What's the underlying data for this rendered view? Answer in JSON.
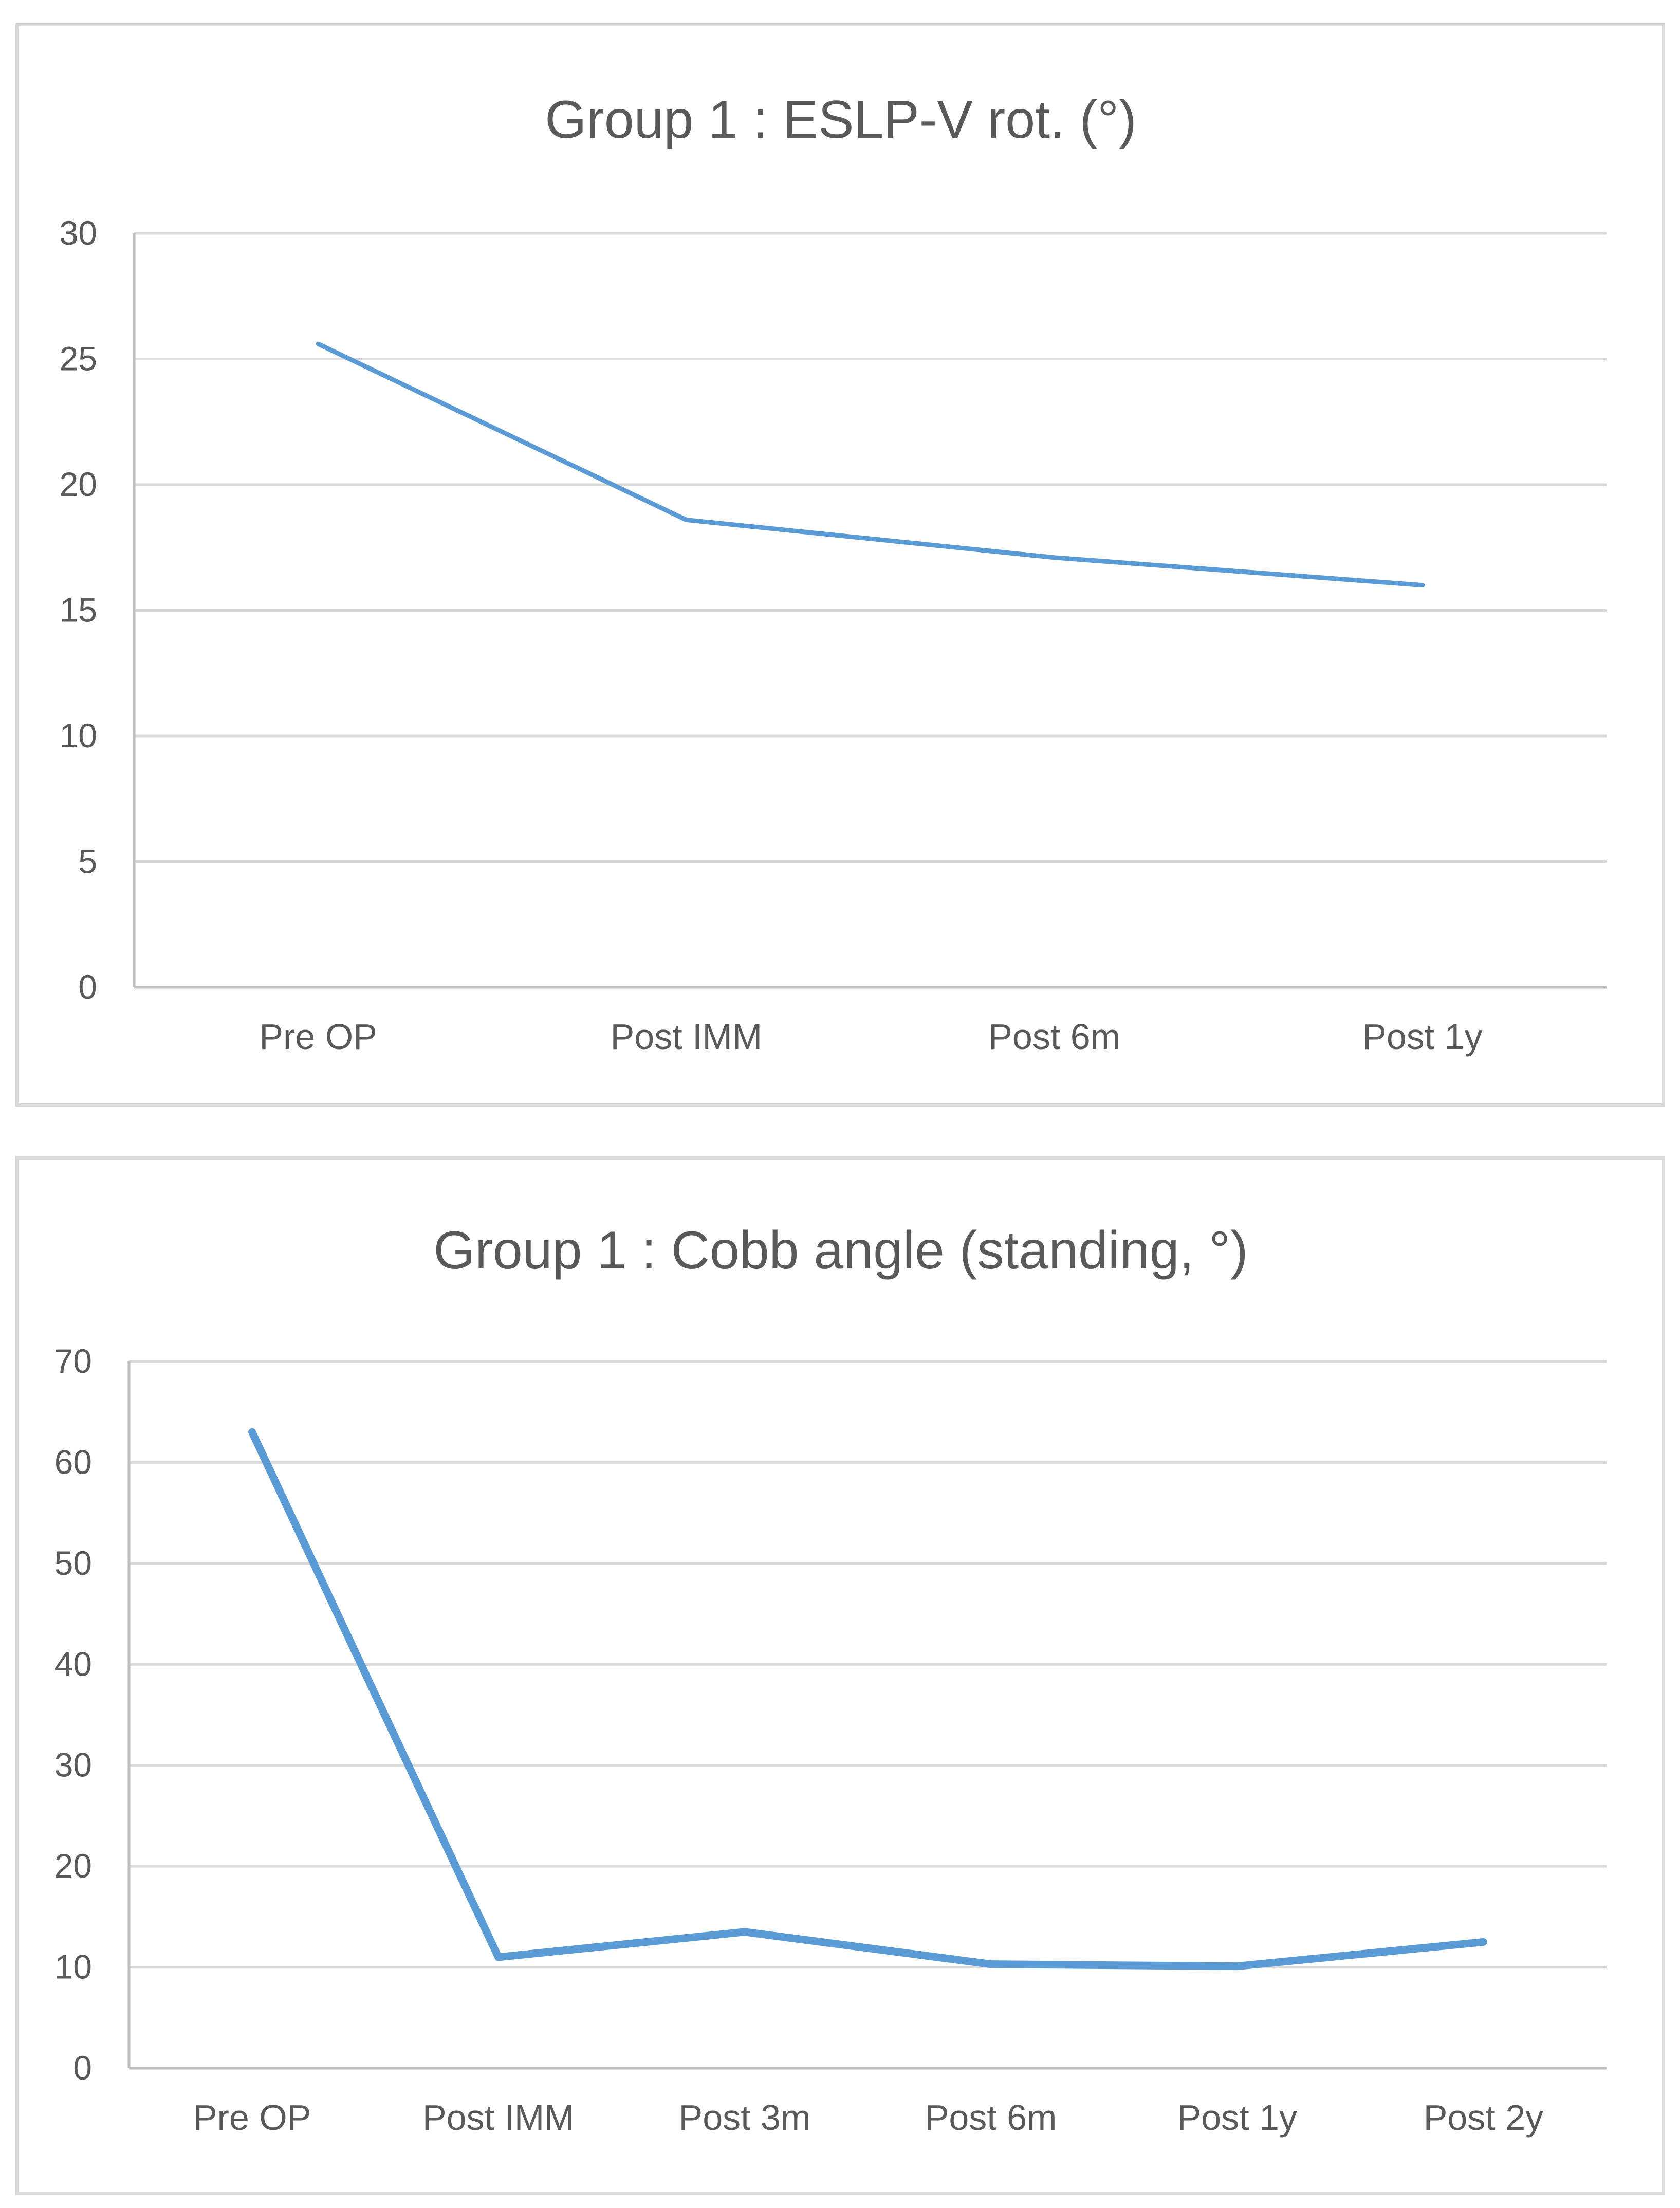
{
  "chart_data": [
    {
      "type": "line",
      "title": "Group 1 : ESLP-V rot. (°)",
      "categories": [
        "Pre OP",
        "Post IMM",
        "Post 6m",
        "Post 1y"
      ],
      "series": [
        {
          "name": "ESLP-V rot.",
          "values": [
            25.6,
            18.6,
            17.1,
            16.0
          ],
          "color": "#5b9bd5"
        }
      ],
      "yticks": [
        "0",
        "5",
        "10",
        "15",
        "20",
        "25",
        "30"
      ],
      "ylim": [
        0,
        30
      ],
      "xlabel": "",
      "ylabel": "",
      "grid": true
    },
    {
      "type": "line",
      "title": "Group 1 : Cobb angle (standing, °)",
      "categories": [
        "Pre OP",
        "Post IMM",
        "Post 3m",
        "Post 6m",
        "Post 1y",
        "Post 2y"
      ],
      "series": [
        {
          "name": "Cobb angle",
          "values": [
            63,
            11,
            13.5,
            10.3,
            10.1,
            12.5
          ],
          "color": "#5b9bd5"
        }
      ],
      "yticks": [
        "0",
        "10",
        "20",
        "30",
        "40",
        "50",
        "60",
        "70"
      ],
      "ylim": [
        0,
        70
      ],
      "xlabel": "",
      "ylabel": "",
      "grid": true
    }
  ]
}
